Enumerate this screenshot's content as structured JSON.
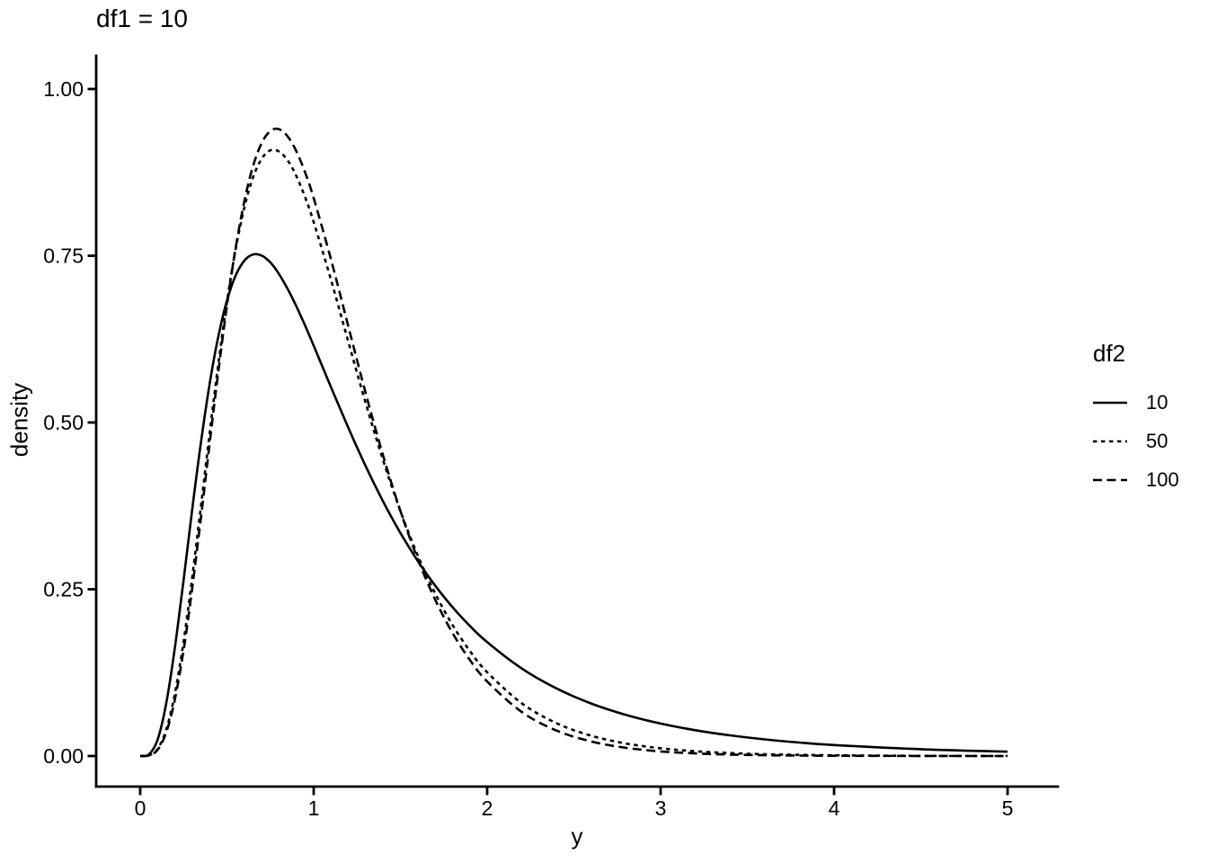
{
  "chart_data": {
    "type": "line",
    "title": "df1 = 10",
    "xlabel": "y",
    "ylabel": "density",
    "xlim": [
      0,
      5
    ],
    "ylim": [
      0,
      1.0
    ],
    "grid": false,
    "background": "#FFFFFF",
    "x_ticks": {
      "values": [
        0,
        1,
        2,
        3,
        4,
        5
      ],
      "labels": [
        "0",
        "1",
        "2",
        "3",
        "4",
        "5"
      ]
    },
    "y_ticks": {
      "values": [
        0,
        0.25,
        0.5,
        0.75,
        1.0
      ],
      "labels": [
        "0.00",
        "0.25",
        "0.50",
        "0.75",
        "1.00"
      ]
    },
    "legend": {
      "title": "df2",
      "position": "right"
    },
    "colors": {
      "line": "#000000",
      "axis": "#000000",
      "text": "#000000"
    },
    "x": [
      0,
      0.05,
      0.1,
      0.15,
      0.2,
      0.25,
      0.3,
      0.35,
      0.4,
      0.45,
      0.5,
      0.55,
      0.6,
      0.65,
      0.7,
      0.75,
      0.8,
      0.85,
      0.9,
      0.95,
      1.0,
      1.1,
      1.2,
      1.3,
      1.4,
      1.5,
      1.6,
      1.7,
      1.8,
      1.9,
      2.0,
      2.2,
      2.4,
      2.6,
      2.8,
      3.0,
      3.2,
      3.4,
      3.6,
      3.8,
      4.0,
      4.5,
      5.0
    ],
    "series": [
      {
        "name": "10",
        "linetype": "solid",
        "values": [
          0,
          0.0024,
          0.0243,
          0.0788,
          0.1628,
          0.2642,
          0.3702,
          0.4702,
          0.5576,
          0.6288,
          0.6828,
          0.7202,
          0.7426,
          0.7519,
          0.7503,
          0.74,
          0.7227,
          0.7003,
          0.6742,
          0.6455,
          0.6152,
          0.553,
          0.4919,
          0.4344,
          0.3817,
          0.3344,
          0.2925,
          0.2556,
          0.2233,
          0.1952,
          0.1707,
          0.1311,
          0.1013,
          0.0787,
          0.0617,
          0.0487,
          0.0387,
          0.031,
          0.0249,
          0.0202,
          0.0165,
          0.0102,
          0.0065
        ]
      },
      {
        "name": "50",
        "linetype": "dotted",
        "values": [
          0,
          0.0009,
          0.0105,
          0.0396,
          0.0937,
          0.1717,
          0.268,
          0.3746,
          0.4834,
          0.5873,
          0.6806,
          0.7595,
          0.8219,
          0.8671,
          0.8953,
          0.9081,
          0.9064,
          0.8931,
          0.8695,
          0.838,
          0.8005,
          0.7138,
          0.6207,
          0.529,
          0.4436,
          0.3672,
          0.3007,
          0.244,
          0.1966,
          0.1577,
          0.1256,
          0.079,
          0.0492,
          0.0304,
          0.0188,
          0.0116,
          0.0071,
          0.0044,
          0.0027,
          0.0017,
          0.0011,
          0.0003,
          0.0001
        ]
      },
      {
        "name": "100",
        "linetype": "dashed",
        "values": [
          0,
          0.0008,
          0.0091,
          0.0353,
          0.0851,
          0.1588,
          0.252,
          0.3577,
          0.4681,
          0.576,
          0.6753,
          0.7613,
          0.8313,
          0.884,
          0.9189,
          0.9371,
          0.9398,
          0.929,
          0.9068,
          0.8752,
          0.8364,
          0.7444,
          0.6438,
          0.5438,
          0.4506,
          0.3673,
          0.2953,
          0.2347,
          0.1847,
          0.1442,
          0.1117,
          0.0659,
          0.0382,
          0.0218,
          0.0123,
          0.0069,
          0.0039,
          0.0022,
          0.0012,
          0.0007,
          0.0004,
          0.0001,
          0.0
        ]
      }
    ]
  }
}
